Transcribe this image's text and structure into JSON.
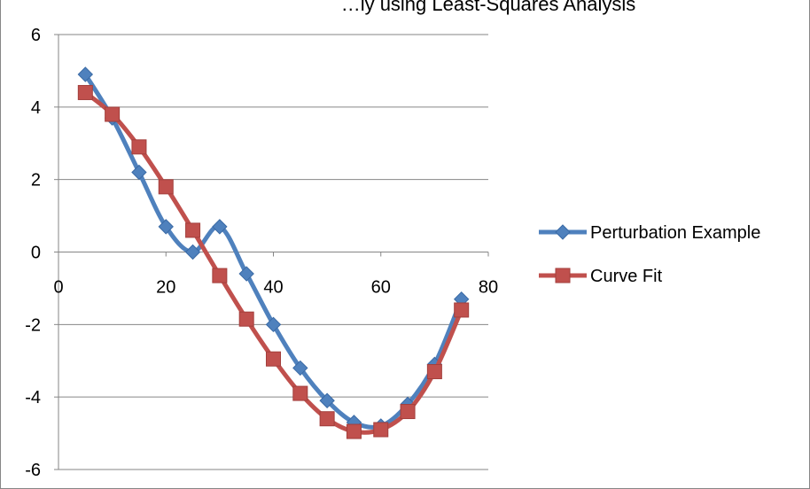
{
  "chart_data": {
    "type": "line",
    "title": "…ly using Least-Squares Analysis",
    "x": [
      5,
      10,
      15,
      20,
      25,
      30,
      35,
      40,
      45,
      50,
      55,
      60,
      65,
      70,
      75
    ],
    "series": [
      {
        "name": "Perturbation Example",
        "color": "#4f81bd",
        "marker": "diamond",
        "values": [
          4.9,
          3.7,
          2.2,
          0.7,
          0.0,
          0.7,
          -0.6,
          -2.0,
          -3.2,
          -4.1,
          -4.7,
          -4.8,
          -4.2,
          -3.1,
          -1.3
        ]
      },
      {
        "name": "Curve Fit",
        "color": "#c0504d",
        "marker": "square",
        "values": [
          4.4,
          3.8,
          2.9,
          1.8,
          0.6,
          -0.65,
          -1.85,
          -2.95,
          -3.9,
          -4.6,
          -4.95,
          -4.9,
          -4.4,
          -3.3,
          -1.6
        ]
      }
    ],
    "xlim": [
      0,
      80
    ],
    "ylim": [
      -6,
      6
    ],
    "x_ticks": [
      0,
      20,
      40,
      60,
      80
    ],
    "y_ticks": [
      6,
      4,
      2,
      0,
      -2,
      -4,
      -6
    ],
    "grid": "horizontal",
    "legend": "right",
    "smooth": true
  }
}
